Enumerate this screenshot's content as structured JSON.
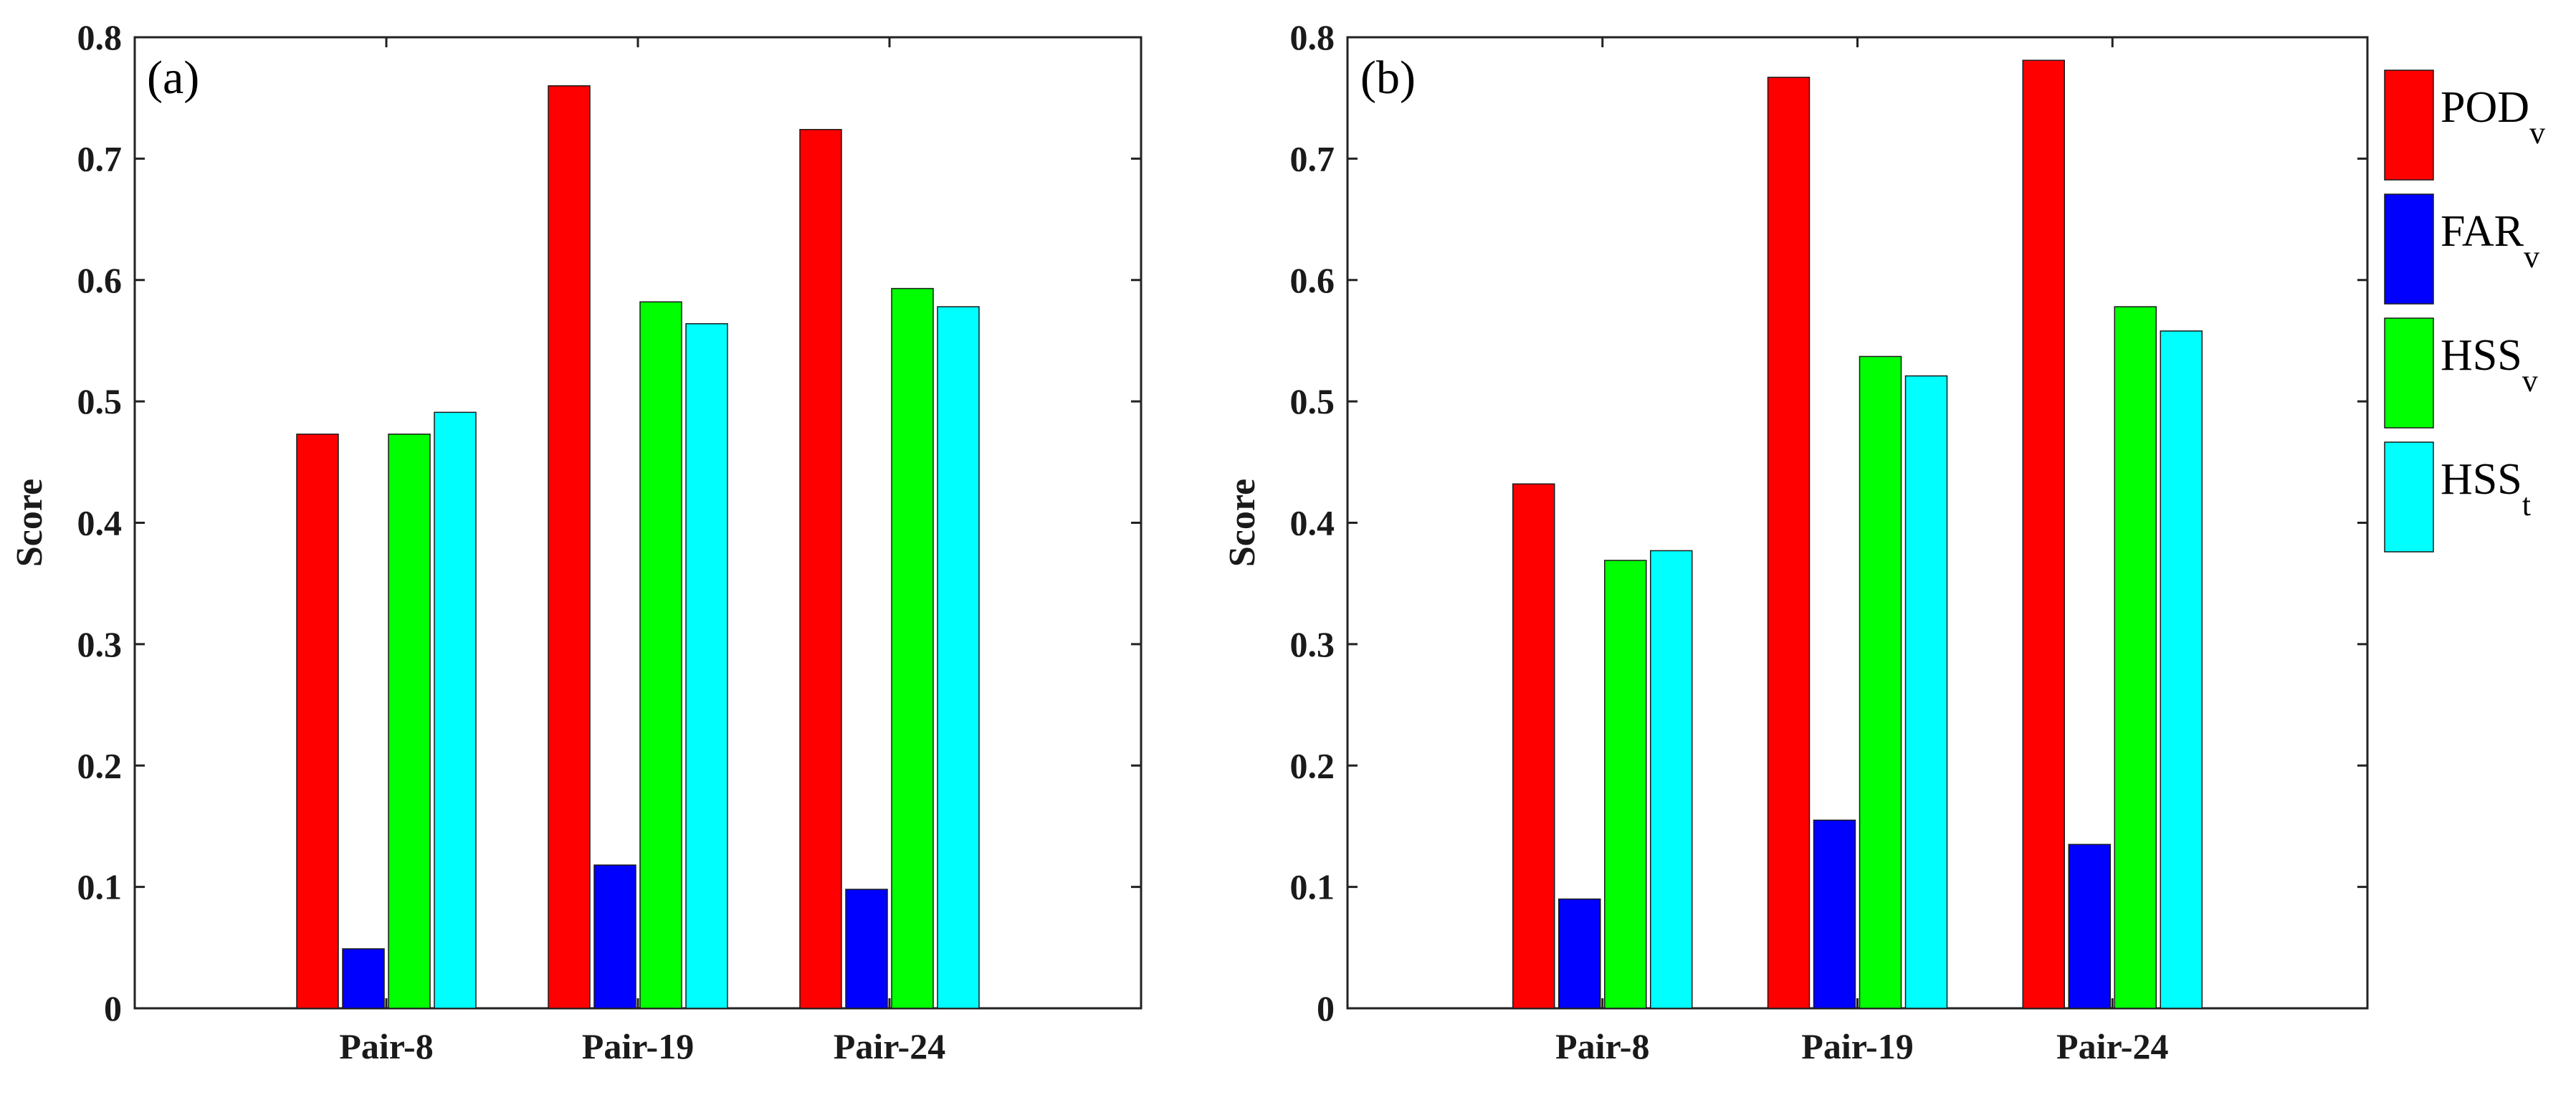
{
  "chart_data": [
    {
      "type": "bar",
      "panel_label": "(a)",
      "categories": [
        "Pair-8",
        "Pair-19",
        "Pair-24"
      ],
      "series": [
        {
          "name": "POD",
          "subscript": "v",
          "color": "#ff0000",
          "values": [
            0.473,
            0.76,
            0.724
          ]
        },
        {
          "name": "FAR",
          "subscript": "v",
          "color": "#0000ff",
          "values": [
            0.049,
            0.118,
            0.098
          ]
        },
        {
          "name": "HSS",
          "subscript": "v",
          "color": "#00ff00",
          "values": [
            0.473,
            0.582,
            0.593
          ]
        },
        {
          "name": "HSS",
          "subscript": "t",
          "color": "#00ffff",
          "values": [
            0.491,
            0.564,
            0.578
          ]
        }
      ],
      "ylabel": "Score",
      "ylim": [
        0,
        0.8
      ],
      "yticks": [
        "0",
        "0.1",
        "0.2",
        "0.3",
        "0.4",
        "0.5",
        "0.6",
        "0.7",
        "0.8"
      ],
      "legend": false
    },
    {
      "type": "bar",
      "panel_label": "(b)",
      "categories": [
        "Pair-8",
        "Pair-19",
        "Pair-24"
      ],
      "series": [
        {
          "name": "POD",
          "subscript": "v",
          "color": "#ff0000",
          "values": [
            0.432,
            0.767,
            0.781
          ]
        },
        {
          "name": "FAR",
          "subscript": "v",
          "color": "#0000ff",
          "values": [
            0.09,
            0.155,
            0.135
          ]
        },
        {
          "name": "HSS",
          "subscript": "v",
          "color": "#00ff00",
          "values": [
            0.369,
            0.537,
            0.578
          ]
        },
        {
          "name": "HSS",
          "subscript": "t",
          "color": "#00ffff",
          "values": [
            0.377,
            0.521,
            0.558
          ]
        }
      ],
      "ylabel": "Score",
      "ylim": [
        0,
        0.8
      ],
      "yticks": [
        "0",
        "0.1",
        "0.2",
        "0.3",
        "0.4",
        "0.5",
        "0.6",
        "0.7",
        "0.8"
      ],
      "legend": true,
      "legend_position": "outside-top-right"
    }
  ]
}
